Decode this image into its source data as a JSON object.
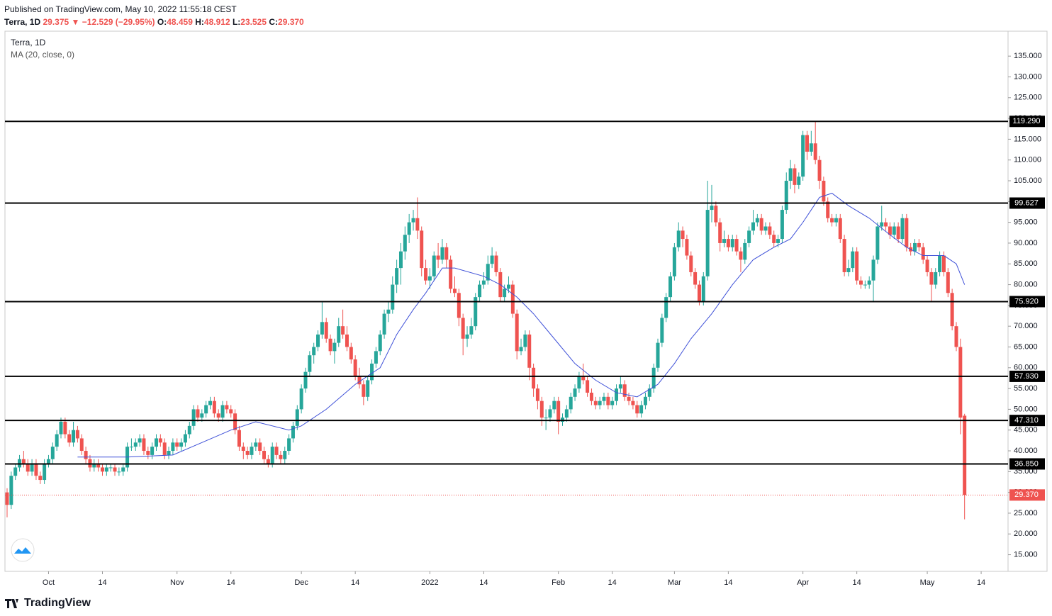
{
  "header": {
    "published": "Published on TradingView.com, May 10, 2022 11:55:18 CEST",
    "symbol": "Terra, 1D",
    "price": "29.375",
    "arrow": "▼",
    "change": "−12.529 (−29.95%)",
    "open_label": "O:",
    "open": "48.459",
    "high_label": "H:",
    "high": "48.912",
    "low_label": "L:",
    "low": "23.525",
    "close_label": "C:",
    "close": "29.370"
  },
  "footer": {
    "brand": "TradingView"
  },
  "chart_data": {
    "type": "candlestick",
    "legend": "Terra, 1D",
    "indicator": "MA (20, close, 0)",
    "up_color": "#26a69a",
    "down_color": "#ef5350",
    "ma_color": "#3f51d8",
    "ylim": [
      11,
      141
    ],
    "yticks": [
      {
        "value": 15,
        "label": "15.000"
      },
      {
        "value": 20,
        "label": "20.000"
      },
      {
        "value": 25,
        "label": "25.000"
      },
      {
        "value": 30,
        "label": "30.000"
      },
      {
        "value": 35,
        "label": "35.000"
      },
      {
        "value": 40,
        "label": "40.000"
      },
      {
        "value": 45,
        "label": "45.000"
      },
      {
        "value": 50,
        "label": "50.000"
      },
      {
        "value": 55,
        "label": "55.000"
      },
      {
        "value": 60,
        "label": "60.000"
      },
      {
        "value": 65,
        "label": "65.000"
      },
      {
        "value": 70,
        "label": "70.000"
      },
      {
        "value": 75,
        "label": "75.000"
      },
      {
        "value": 80,
        "label": "80.000"
      },
      {
        "value": 85,
        "label": "85.000"
      },
      {
        "value": 90,
        "label": "90.000"
      },
      {
        "value": 95,
        "label": "95.000"
      },
      {
        "value": 100,
        "label": "100.000"
      },
      {
        "value": 105,
        "label": "105.000"
      },
      {
        "value": 110,
        "label": "110.000"
      },
      {
        "value": 115,
        "label": "115.000"
      },
      {
        "value": 120,
        "label": "120.000"
      },
      {
        "value": 125,
        "label": "125.000"
      },
      {
        "value": 130,
        "label": "130.000"
      },
      {
        "value": 135,
        "label": "135.000"
      }
    ],
    "xlim": [
      0,
      242
    ],
    "xticks": [
      {
        "value": 10,
        "label": "Oct"
      },
      {
        "value": 23,
        "label": "14"
      },
      {
        "value": 41,
        "label": "Nov"
      },
      {
        "value": 54,
        "label": "14"
      },
      {
        "value": 71,
        "label": "Dec"
      },
      {
        "value": 84,
        "label": "14"
      },
      {
        "value": 102,
        "label": "2022"
      },
      {
        "value": 115,
        "label": "14"
      },
      {
        "value": 133,
        "label": "Feb"
      },
      {
        "value": 146,
        "label": "14"
      },
      {
        "value": 161,
        "label": "Mar"
      },
      {
        "value": 174,
        "label": "14"
      },
      {
        "value": 192,
        "label": "Apr"
      },
      {
        "value": 205,
        "label": "14"
      },
      {
        "value": 222,
        "label": "May"
      },
      {
        "value": 235,
        "label": "14"
      }
    ],
    "levels": [
      {
        "value": 119.29,
        "label": "119.290"
      },
      {
        "value": 99.627,
        "label": "99.627"
      },
      {
        "value": 75.92,
        "label": "75.920"
      },
      {
        "value": 57.93,
        "label": "57.930"
      },
      {
        "value": 47.31,
        "label": "47.310"
      },
      {
        "value": 36.85,
        "label": "36.850"
      }
    ],
    "last_price": {
      "value": 29.37,
      "label": "29.370"
    },
    "ma": {
      "x": [
        17,
        29,
        40,
        47,
        54,
        60,
        68,
        71,
        77,
        84,
        90,
        94,
        98,
        101,
        105,
        108,
        115,
        119,
        123,
        127,
        132,
        137,
        142,
        147,
        152,
        157,
        161,
        165,
        170,
        175,
        180,
        185,
        189,
        192,
        196,
        199,
        203,
        208,
        213,
        217,
        221,
        226,
        229,
        231
      ],
      "values": [
        38.5,
        38.5,
        39,
        42,
        45,
        47,
        45,
        46,
        50,
        56,
        60,
        68,
        74,
        78,
        84,
        84,
        82,
        80,
        77,
        73,
        67,
        61,
        57,
        54,
        53,
        56,
        61,
        67,
        73,
        80,
        86,
        89,
        91,
        95,
        101,
        102,
        99,
        96,
        92,
        89,
        87,
        87,
        85,
        80
      ]
    },
    "candles": [
      [
        30,
        31,
        24,
        27
      ],
      [
        27,
        35,
        26,
        34
      ],
      [
        34,
        37,
        33,
        36
      ],
      [
        36,
        39,
        35,
        38
      ],
      [
        38,
        40,
        36,
        37
      ],
      [
        37,
        38,
        34,
        35
      ],
      [
        35,
        38,
        34,
        37
      ],
      [
        37,
        38,
        33,
        34
      ],
      [
        34,
        35,
        32,
        33
      ],
      [
        33,
        38,
        32,
        37
      ],
      [
        37,
        39,
        36,
        38
      ],
      [
        38,
        42,
        37,
        41
      ],
      [
        41,
        45,
        40,
        44
      ],
      [
        44,
        48,
        43,
        47
      ],
      [
        47,
        48,
        43,
        44
      ],
      [
        44,
        45,
        41,
        42
      ],
      [
        42,
        47,
        41,
        45
      ],
      [
        45,
        46,
        42,
        43
      ],
      [
        43,
        44,
        39,
        40
      ],
      [
        40,
        41,
        37,
        38
      ],
      [
        38,
        39,
        35,
        36
      ],
      [
        36,
        38,
        35,
        37
      ],
      [
        37,
        38,
        35,
        36
      ],
      [
        36,
        37,
        34,
        35
      ],
      [
        35,
        37,
        34,
        36
      ],
      [
        36,
        37,
        35,
        36
      ],
      [
        36,
        37,
        34,
        35
      ],
      [
        35,
        36,
        34,
        35
      ],
      [
        35,
        37,
        34,
        36
      ],
      [
        36,
        42,
        35,
        41
      ],
      [
        41,
        43,
        40,
        41
      ],
      [
        41,
        43,
        40,
        42
      ],
      [
        42,
        44,
        41,
        43
      ],
      [
        43,
        44,
        39,
        40
      ],
      [
        40,
        41,
        38,
        39
      ],
      [
        39,
        42,
        38,
        41
      ],
      [
        41,
        44,
        40,
        43
      ],
      [
        43,
        44,
        41,
        42
      ],
      [
        42,
        43,
        38,
        39
      ],
      [
        39,
        41,
        38,
        40
      ],
      [
        40,
        43,
        39,
        42
      ],
      [
        42,
        43,
        40,
        41
      ],
      [
        41,
        43,
        40,
        42
      ],
      [
        42,
        45,
        41,
        44
      ],
      [
        44,
        47,
        43,
        46
      ],
      [
        46,
        51,
        45,
        50
      ],
      [
        50,
        51,
        47,
        48
      ],
      [
        48,
        50,
        47,
        49
      ],
      [
        49,
        52,
        48,
        51
      ],
      [
        51,
        53,
        50,
        52
      ],
      [
        52,
        53,
        48,
        49
      ],
      [
        49,
        50,
        47,
        48
      ],
      [
        48,
        52,
        47,
        51
      ],
      [
        51,
        52,
        49,
        50
      ],
      [
        50,
        51,
        48,
        49
      ],
      [
        49,
        50,
        44,
        45
      ],
      [
        45,
        46,
        40,
        41
      ],
      [
        41,
        42,
        38,
        40
      ],
      [
        40,
        41,
        38,
        39
      ],
      [
        39,
        42,
        38,
        41
      ],
      [
        41,
        43,
        40,
        42
      ],
      [
        42,
        43,
        39,
        40
      ],
      [
        40,
        41,
        37,
        38
      ],
      [
        38,
        39,
        36,
        37
      ],
      [
        37,
        42,
        36,
        41
      ],
      [
        41,
        42,
        38,
        39
      ],
      [
        39,
        40,
        37,
        38
      ],
      [
        38,
        41,
        37,
        40
      ],
      [
        40,
        44,
        39,
        43
      ],
      [
        43,
        47,
        42,
        46
      ],
      [
        46,
        51,
        45,
        50
      ],
      [
        50,
        56,
        49,
        55
      ],
      [
        55,
        60,
        54,
        59
      ],
      [
        59,
        64,
        58,
        63
      ],
      [
        63,
        66,
        61,
        65
      ],
      [
        65,
        69,
        64,
        68
      ],
      [
        68,
        76,
        67,
        71
      ],
      [
        71,
        72,
        66,
        67
      ],
      [
        67,
        68,
        63,
        64
      ],
      [
        64,
        67,
        61,
        66
      ],
      [
        66,
        72,
        65,
        70
      ],
      [
        70,
        74,
        67,
        68
      ],
      [
        68,
        70,
        64,
        65
      ],
      [
        65,
        66,
        61,
        62
      ],
      [
        62,
        63,
        57,
        58
      ],
      [
        58,
        60,
        55,
        56
      ],
      [
        56,
        57,
        51,
        53
      ],
      [
        53,
        58,
        52,
        57
      ],
      [
        57,
        62,
        56,
        61
      ],
      [
        61,
        65,
        60,
        64
      ],
      [
        64,
        69,
        63,
        68
      ],
      [
        68,
        74,
        67,
        73
      ],
      [
        73,
        76,
        71,
        74
      ],
      [
        74,
        82,
        73,
        80
      ],
      [
        80,
        86,
        78,
        84
      ],
      [
        84,
        90,
        80,
        88
      ],
      [
        88,
        94,
        86,
        92
      ],
      [
        92,
        97,
        90,
        95
      ],
      [
        95,
        98,
        93,
        96
      ],
      [
        96,
        101,
        91,
        93
      ],
      [
        93,
        94,
        82,
        84
      ],
      [
        84,
        86,
        80,
        81
      ],
      [
        81,
        84,
        79,
        82
      ],
      [
        82,
        88,
        81,
        87
      ],
      [
        87,
        90,
        84,
        86
      ],
      [
        86,
        91,
        85,
        89
      ],
      [
        89,
        90,
        84,
        86
      ],
      [
        86,
        87,
        78,
        79
      ],
      [
        79,
        82,
        77,
        78
      ],
      [
        78,
        79,
        70,
        72
      ],
      [
        72,
        73,
        63,
        67
      ],
      [
        67,
        70,
        65,
        68
      ],
      [
        68,
        72,
        67,
        70
      ],
      [
        70,
        78,
        69,
        77
      ],
      [
        77,
        81,
        76,
        80
      ],
      [
        80,
        83,
        79,
        81
      ],
      [
        81,
        87,
        80,
        85
      ],
      [
        85,
        89,
        84,
        87
      ],
      [
        87,
        88,
        82,
        83
      ],
      [
        83,
        84,
        76,
        77
      ],
      [
        77,
        80,
        76,
        79
      ],
      [
        79,
        82,
        78,
        80
      ],
      [
        80,
        81,
        72,
        73
      ],
      [
        73,
        74,
        62,
        64
      ],
      [
        64,
        67,
        63,
        65
      ],
      [
        65,
        69,
        64,
        68
      ],
      [
        68,
        69,
        57,
        60
      ],
      [
        60,
        61,
        53,
        55
      ],
      [
        55,
        56,
        50,
        52
      ],
      [
        52,
        53,
        46,
        48
      ],
      [
        48,
        50,
        45,
        48
      ],
      [
        48,
        51,
        47,
        50
      ],
      [
        50,
        53,
        49,
        52
      ],
      [
        52,
        53,
        44,
        47
      ],
      [
        47,
        49,
        46,
        48
      ],
      [
        48,
        51,
        47,
        50
      ],
      [
        50,
        54,
        49,
        53
      ],
      [
        53,
        56,
        52,
        55
      ],
      [
        55,
        59,
        54,
        58
      ],
      [
        58,
        61,
        56,
        57
      ],
      [
        57,
        58,
        53,
        54
      ],
      [
        54,
        55,
        51,
        52
      ],
      [
        52,
        53,
        50,
        51
      ],
      [
        51,
        53,
        50,
        52
      ],
      [
        52,
        54,
        51,
        53
      ],
      [
        53,
        54,
        50,
        51
      ],
      [
        51,
        53,
        50,
        52
      ],
      [
        52,
        56,
        51,
        55
      ],
      [
        55,
        58,
        54,
        56
      ],
      [
        56,
        57,
        52,
        53
      ],
      [
        53,
        54,
        51,
        52
      ],
      [
        52,
        53,
        50,
        51
      ],
      [
        51,
        52,
        48,
        49
      ],
      [
        49,
        52,
        48,
        51
      ],
      [
        51,
        54,
        50,
        53
      ],
      [
        53,
        56,
        52,
        55
      ],
      [
        55,
        61,
        54,
        60
      ],
      [
        60,
        67,
        59,
        66
      ],
      [
        66,
        73,
        65,
        72
      ],
      [
        72,
        78,
        71,
        77
      ],
      [
        77,
        83,
        76,
        82
      ],
      [
        82,
        90,
        81,
        89
      ],
      [
        89,
        95,
        88,
        93
      ],
      [
        93,
        94,
        89,
        91
      ],
      [
        91,
        92,
        86,
        87
      ],
      [
        87,
        88,
        82,
        83
      ],
      [
        83,
        84,
        79,
        80
      ],
      [
        80,
        81,
        75,
        76
      ],
      [
        76,
        83,
        75,
        82
      ],
      [
        82,
        105,
        81,
        98
      ],
      [
        98,
        104,
        95,
        99
      ],
      [
        99,
        100,
        94,
        95
      ],
      [
        95,
        96,
        88,
        90
      ],
      [
        90,
        93,
        89,
        91
      ],
      [
        91,
        92,
        88,
        89
      ],
      [
        89,
        92,
        88,
        91
      ],
      [
        91,
        92,
        87,
        88
      ],
      [
        88,
        89,
        83,
        86
      ],
      [
        86,
        91,
        85,
        90
      ],
      [
        90,
        94,
        89,
        93
      ],
      [
        93,
        98,
        92,
        95
      ],
      [
        95,
        97,
        94,
        96
      ],
      [
        96,
        97,
        92,
        93
      ],
      [
        93,
        95,
        92,
        94
      ],
      [
        94,
        95,
        91,
        92
      ],
      [
        92,
        93,
        89,
        90
      ],
      [
        90,
        92,
        89,
        91
      ],
      [
        91,
        99,
        90,
        98
      ],
      [
        98,
        107,
        97,
        105
      ],
      [
        105,
        110,
        103,
        108
      ],
      [
        108,
        109,
        102,
        104
      ],
      [
        104,
        107,
        103,
        106
      ],
      [
        106,
        117,
        105,
        116
      ],
      [
        116,
        117,
        110,
        112
      ],
      [
        112,
        117,
        111,
        114
      ],
      [
        114,
        119.29,
        109,
        110
      ],
      [
        110,
        111,
        103,
        105
      ],
      [
        105,
        106,
        99,
        100
      ],
      [
        100,
        101,
        95,
        96
      ],
      [
        96,
        97,
        94,
        95
      ],
      [
        95,
        97,
        94,
        96
      ],
      [
        96,
        97,
        90,
        91
      ],
      [
        91,
        92,
        82,
        83
      ],
      [
        83,
        86,
        82,
        84
      ],
      [
        84,
        89,
        83,
        88
      ],
      [
        88,
        89,
        80,
        81
      ],
      [
        81,
        82,
        79,
        80
      ],
      [
        80,
        81,
        79,
        80
      ],
      [
        80,
        82,
        79,
        81
      ],
      [
        81,
        87,
        76,
        86
      ],
      [
        86,
        95,
        85,
        94
      ],
      [
        94,
        99,
        93,
        95
      ],
      [
        95,
        96,
        93,
        94
      ],
      [
        94,
        95,
        91,
        92
      ],
      [
        92,
        95,
        91,
        94
      ],
      [
        94,
        95,
        90,
        91
      ],
      [
        91,
        97,
        90,
        96
      ],
      [
        96,
        97,
        88,
        89
      ],
      [
        89,
        90,
        87,
        88
      ],
      [
        88,
        91,
        87,
        90
      ],
      [
        90,
        91,
        88,
        89
      ],
      [
        89,
        90,
        85,
        86
      ],
      [
        86,
        87,
        82,
        83
      ],
      [
        83,
        84,
        76,
        80
      ],
      [
        80,
        84,
        79,
        83
      ],
      [
        83,
        88,
        82,
        87
      ],
      [
        87,
        88,
        82,
        83
      ],
      [
        83,
        84,
        77,
        78
      ],
      [
        78,
        79,
        69,
        70
      ],
      [
        70,
        71,
        64,
        65
      ],
      [
        65,
        67,
        44,
        48
      ],
      [
        48.459,
        48.912,
        23.525,
        29.37
      ]
    ]
  }
}
